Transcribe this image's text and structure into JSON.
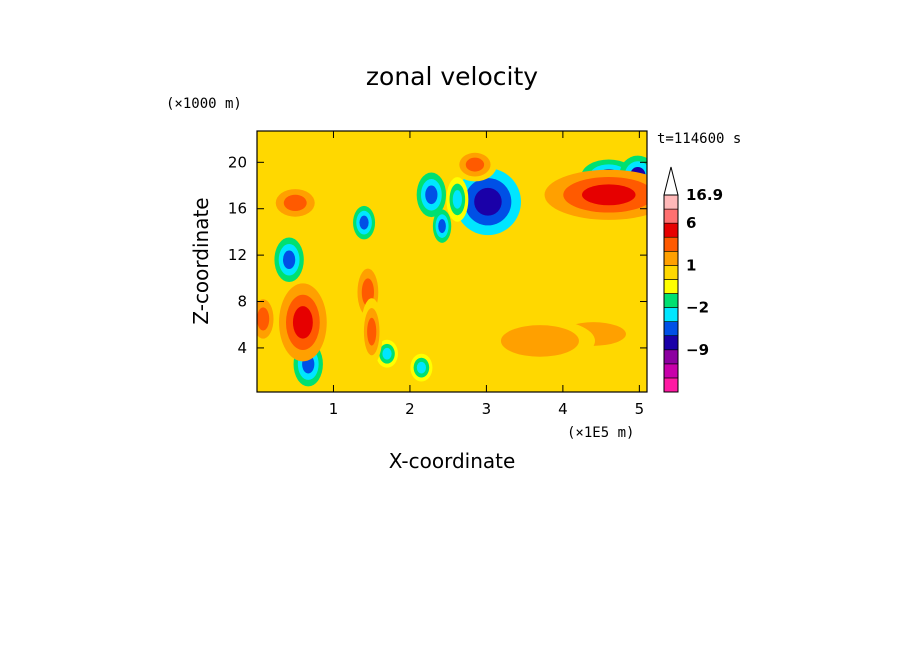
{
  "chart_data": {
    "type": "heatmap",
    "title": "zonal velocity",
    "xlabel": "X-coordinate",
    "ylabel": "Z-coordinate",
    "x_units": "(×1E5 m)",
    "y_units": "(×1000 m)",
    "time_label": "t=114600 s",
    "xlim": [
      0,
      5.1
    ],
    "ylim": [
      0.2,
      22.7
    ],
    "x_ticks": [
      "1",
      "2",
      "3",
      "4",
      "5"
    ],
    "x_tick_values": [
      1,
      2,
      3,
      4,
      5
    ],
    "y_ticks": [
      "4",
      "8",
      "12",
      "16",
      "20"
    ],
    "y_tick_values": [
      4,
      8,
      12,
      16,
      20
    ],
    "colorbar": {
      "labels": [
        "16.9",
        "6",
        "1",
        "−2",
        "−9"
      ],
      "label_values": [
        16.9,
        6,
        1,
        -2,
        -9
      ],
      "levels": [
        -15,
        -12,
        -9,
        -6,
        -4,
        -2,
        -1,
        0,
        1,
        2,
        4,
        6,
        9,
        12,
        16.9
      ],
      "colors": [
        "#ff1aa3",
        "#c800aa",
        "#8c00a0",
        "#1a00a8",
        "#0050e6",
        "#00e6ff",
        "#00e070",
        "#ffff00",
        "#ffd800",
        "#ffa000",
        "#ff5a00",
        "#e60000",
        "#ff7070",
        "#ffb8b8",
        "#ffffff"
      ]
    },
    "background_value": 0.5,
    "features": [
      {
        "x": 3.02,
        "z": 16.6,
        "value": -7,
        "w": 0.18,
        "h": 1.2
      },
      {
        "x": 4.6,
        "z": 18.8,
        "value": -6,
        "w": 0.15,
        "h": 0.6
      },
      {
        "x": 4.98,
        "z": 18.9,
        "value": -6,
        "w": 0.1,
        "h": 0.7
      },
      {
        "x": 0.42,
        "z": 11.6,
        "value": -5,
        "w": 0.08,
        "h": 0.8
      },
      {
        "x": 0.67,
        "z": 2.6,
        "value": -5,
        "w": 0.08,
        "h": 0.8
      },
      {
        "x": 1.4,
        "z": 14.8,
        "value": -4,
        "w": 0.06,
        "h": 0.6
      },
      {
        "x": 2.28,
        "z": 17.2,
        "value": -4,
        "w": 0.08,
        "h": 0.8
      },
      {
        "x": 2.42,
        "z": 14.5,
        "value": -4,
        "w": 0.05,
        "h": 0.6
      },
      {
        "x": 2.62,
        "z": 16.8,
        "value": -3,
        "w": 0.06,
        "h": 0.8
      },
      {
        "x": 1.7,
        "z": 3.5,
        "value": -3,
        "w": 0.06,
        "h": 0.5
      },
      {
        "x": 2.15,
        "z": 2.3,
        "value": -3,
        "w": 0.06,
        "h": 0.5
      },
      {
        "x": 4.6,
        "z": 17.2,
        "value": 5,
        "w": 0.35,
        "h": 0.9
      },
      {
        "x": 0.6,
        "z": 6.2,
        "value": 5,
        "w": 0.13,
        "h": 1.4
      },
      {
        "x": 1.45,
        "z": 8.8,
        "value": 3,
        "w": 0.08,
        "h": 1.2
      },
      {
        "x": 1.5,
        "z": 5.4,
        "value": 3,
        "w": 0.06,
        "h": 1.2
      },
      {
        "x": 0.5,
        "z": 16.5,
        "value": 3,
        "w": 0.15,
        "h": 0.7
      },
      {
        "x": 2.85,
        "z": 19.8,
        "value": 3,
        "w": 0.12,
        "h": 0.6
      },
      {
        "x": 0.08,
        "z": 6.5,
        "value": 3,
        "w": 0.08,
        "h": 1.0
      },
      {
        "x": 4.4,
        "z": 5.2,
        "value": 2,
        "w": 0.25,
        "h": 0.6
      },
      {
        "x": 3.7,
        "z": 4.6,
        "value": 2,
        "w": 0.3,
        "h": 0.8
      }
    ]
  }
}
